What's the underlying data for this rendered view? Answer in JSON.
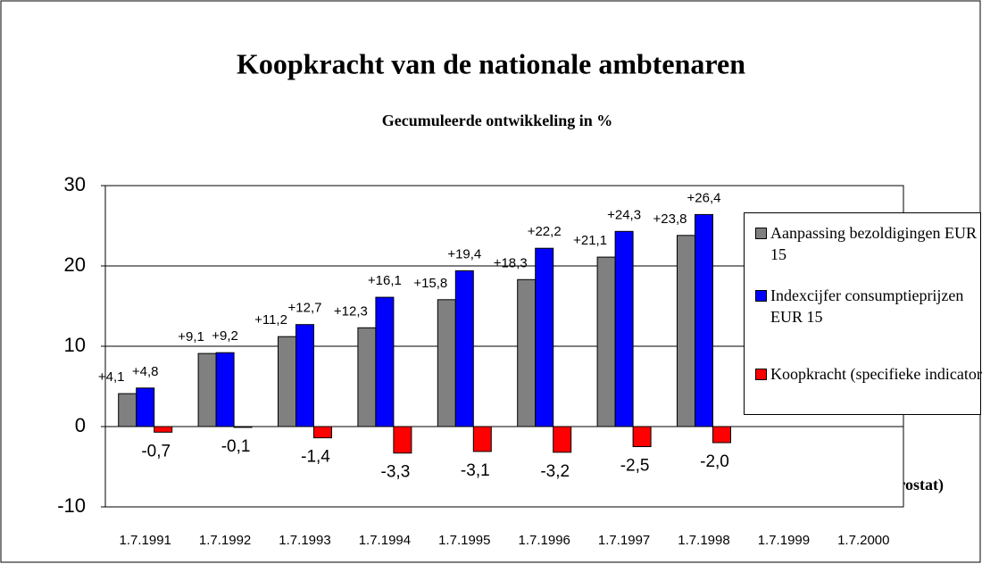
{
  "chart_data": {
    "type": "bar",
    "title": "Koopkracht van de nationale ambtenaren",
    "subtitle": "Gecumuleerde ontwikkeling in %",
    "annotation": "(Bron Eurostat)",
    "categories": [
      "1.7.1991",
      "1.7.1992",
      "1.7.1993",
      "1.7.1994",
      "1.7.1995",
      "1.7.1996",
      "1.7.1997",
      "1.7.1998",
      "1.7.1999",
      "1.7.2000"
    ],
    "series": [
      {
        "name": "Aanpassing bezoldigingen EUR 15",
        "color": "#808080",
        "values": [
          4.1,
          9.1,
          11.2,
          12.3,
          15.8,
          18.3,
          21.1,
          23.8,
          null,
          null
        ],
        "value_labels": [
          "+4,1",
          "+9,1",
          "+11,2",
          "+12,3",
          "+15,8",
          "+18,3",
          "+21,1",
          "+23,8",
          null,
          null
        ]
      },
      {
        "name": "Indexcijfer consumptieprijzen EUR 15",
        "color": "#0000ff",
        "values": [
          4.8,
          9.2,
          12.7,
          16.1,
          19.4,
          22.2,
          24.3,
          26.4,
          null,
          null
        ],
        "value_labels": [
          "+4,8",
          "+9,2",
          "+12,7",
          "+16,1",
          "+19,4",
          "+22,2",
          "+24,3",
          "+26,4",
          null,
          null
        ]
      },
      {
        "name": "Koopkracht (specifieke indicator)",
        "color": "#ff0000",
        "values": [
          -0.7,
          -0.1,
          -1.4,
          -3.3,
          -3.1,
          -3.2,
          -2.5,
          -2.0,
          null,
          null
        ],
        "value_labels": [
          "-0,7",
          "-0,1",
          "-1,4",
          "-3,3",
          "-3,1",
          "-3,2",
          "-2,5",
          "-2,0",
          null,
          null
        ]
      }
    ],
    "ylim": [
      -10,
      30
    ],
    "yticks": [
      -10,
      0,
      10,
      20,
      30
    ],
    "grid": true,
    "legend": "right"
  }
}
